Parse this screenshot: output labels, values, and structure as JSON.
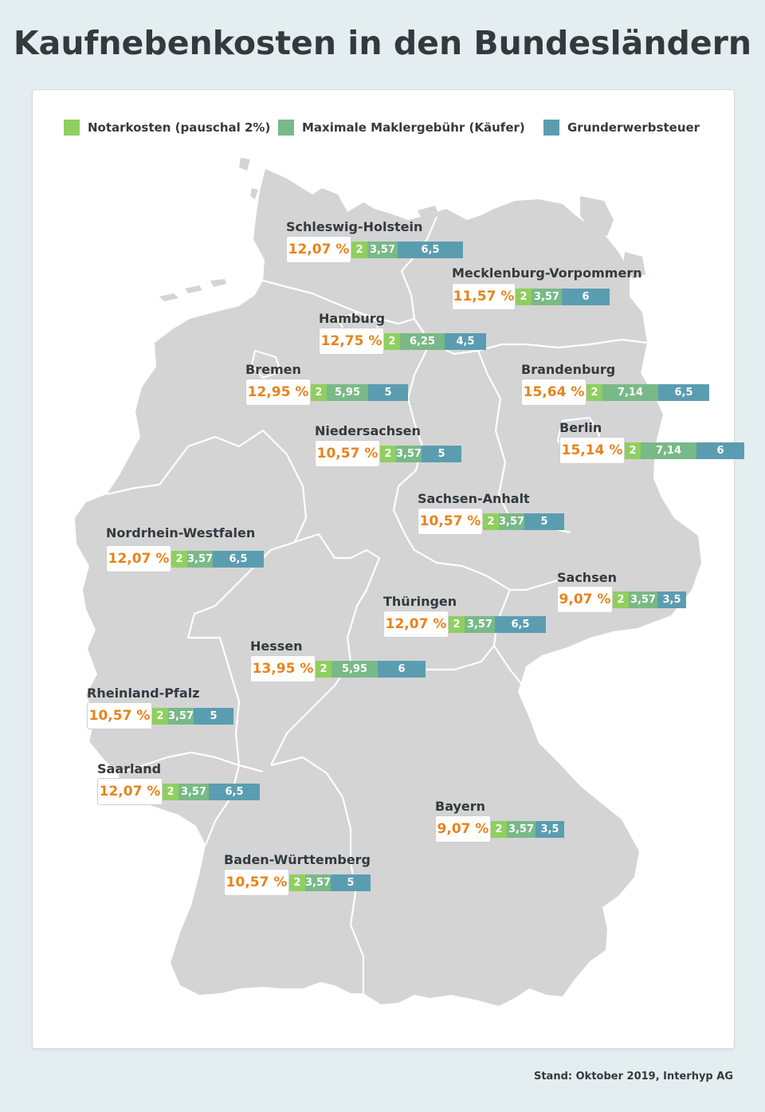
{
  "title": "Kaufnebenkosten in den Bundesländern",
  "legend": [
    {
      "label": "Notarkosten (pauschal 2%)",
      "color": "#8fcf5f"
    },
    {
      "label": "Maximale Maklergebühr (Käufer)",
      "color": "#79b987"
    },
    {
      "label": "Grunderwerbsteuer",
      "color": "#5b9db0"
    }
  ],
  "colors": {
    "map_fill": "#d4d4d4",
    "map_border": "#ffffff",
    "total_text": "#e8831c",
    "card_background": "#ffffff",
    "page_background": "#e4eef0"
  },
  "states": [
    {
      "name": "Schleswig-Holstein",
      "total": "12,07 %",
      "notar": "2",
      "makler": "3,57",
      "grunder": "6,5"
    },
    {
      "name": "Mecklenburg-Vorpommern",
      "total": "11,57 %",
      "notar": "2",
      "makler": "3,57",
      "grunder": "6"
    },
    {
      "name": "Hamburg",
      "total": "12,75 %",
      "notar": "2",
      "makler": "6,25",
      "grunder": "4,5"
    },
    {
      "name": "Bremen",
      "total": "12,95 %",
      "notar": "2",
      "makler": "5,95",
      "grunder": "5"
    },
    {
      "name": "Brandenburg",
      "total": "15,64 %",
      "notar": "2",
      "makler": "7,14",
      "grunder": "6,5"
    },
    {
      "name": "Berlin",
      "total": "15,14 %",
      "notar": "2",
      "makler": "7,14",
      "grunder": "6"
    },
    {
      "name": "Niedersachsen",
      "total": "10,57 %",
      "notar": "2",
      "makler": "3,57",
      "grunder": "5"
    },
    {
      "name": "Sachsen-Anhalt",
      "total": "10,57 %",
      "notar": "2",
      "makler": "3,57",
      "grunder": "5"
    },
    {
      "name": "Nordrhein-Westfalen",
      "total": "12,07 %",
      "notar": "2",
      "makler": "3,57",
      "grunder": "6,5"
    },
    {
      "name": "Sachsen",
      "total": "9,07 %",
      "notar": "2",
      "makler": "3,57",
      "grunder": "3,5"
    },
    {
      "name": "Thüringen",
      "total": "12,07 %",
      "notar": "2",
      "makler": "3,57",
      "grunder": "6,5"
    },
    {
      "name": "Hessen",
      "total": "13,95 %",
      "notar": "2",
      "makler": "5,95",
      "grunder": "6"
    },
    {
      "name": "Rheinland-Pfalz",
      "total": "10,57 %",
      "notar": "2",
      "makler": "3,57",
      "grunder": "5"
    },
    {
      "name": "Saarland",
      "total": "12,07 %",
      "notar": "2",
      "makler": "3,57",
      "grunder": "6,5"
    },
    {
      "name": "Bayern",
      "total": "9,07 %",
      "notar": "2",
      "makler": "3,57",
      "grunder": "3,5"
    },
    {
      "name": "Baden-Württemberg",
      "total": "10,57 %",
      "notar": "2",
      "makler": "3,57",
      "grunder": "5"
    }
  ],
  "footer": "Stand: Oktober 2019, Interhyp AG"
}
